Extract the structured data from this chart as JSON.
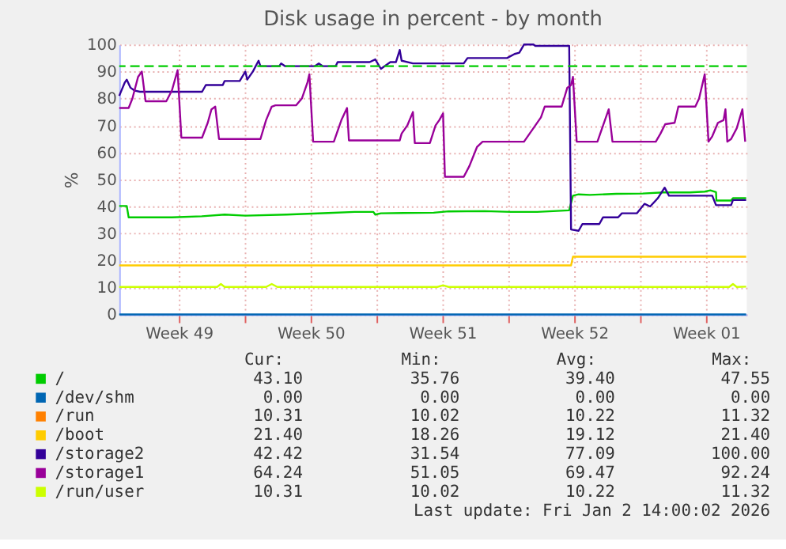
{
  "chart_data": {
    "type": "line",
    "title": "Disk usage in percent - by month",
    "ylabel": "%",
    "xlim": [
      "2025-12-01T08:00",
      "2026-01-03T16:00"
    ],
    "ylim": [
      0,
      100
    ],
    "xticks": [
      {
        "value": "2025-12-04T12:00",
        "label": "Week 49"
      },
      {
        "value": "2025-12-08T00:00",
        "label": null
      },
      {
        "value": "2025-12-11T12:00",
        "label": "Week 50"
      },
      {
        "value": "2025-12-15T00:00",
        "label": null
      },
      {
        "value": "2025-12-18T12:00",
        "label": "Week 51"
      },
      {
        "value": "2025-12-22T00:00",
        "label": null
      },
      {
        "value": "2025-12-25T12:00",
        "label": "Week 52"
      },
      {
        "value": "2025-12-29T00:00",
        "label": null
      },
      {
        "value": "2026-01-01T12:00",
        "label": "Week 01"
      }
    ],
    "yticks": [
      0,
      10,
      20,
      30,
      40,
      50,
      60,
      70,
      80,
      90,
      100
    ],
    "grid": true,
    "legend": "bottom",
    "ref_lines": [
      {
        "axis": "y",
        "value": 92,
        "color": "#00cc00",
        "line_style": "dashed"
      }
    ],
    "series": [
      {
        "name": "/",
        "color": "#00cc00",
        "x": [
          "2025-12-01T08:00",
          "2025-12-01T17:36",
          "2025-12-01T20:00",
          "2025-12-04T03:12",
          "2025-12-05T17:36",
          "2025-12-06T22:24",
          "2025-12-08T00:48",
          "2025-12-10T05:36",
          "2025-12-12T10:24",
          "2025-12-13T20:00",
          "2025-12-14T20:00",
          "2025-12-14T22:24",
          "2025-12-15T05:36",
          "2025-12-18T00:48",
          "2025-12-18T20:00",
          "2025-12-20T17:36",
          "2025-12-22T03:12",
          "2025-12-23T12:48",
          "2025-12-25T05:36",
          "2025-12-25T10:24",
          "2025-12-25T17:36",
          "2025-12-26T08:00",
          "2025-12-27T17:36",
          "2025-12-29T03:12",
          "2025-12-30T05:36",
          "2025-12-31T15:12",
          "2026-01-01T10:24",
          "2026-01-01T17:36",
          "2026-01-02T00:48",
          "2026-01-02T01:17",
          "2026-01-02T20:00",
          "2026-01-02T22:24",
          "2026-01-03T15:12"
        ],
        "values": [
          40.2,
          40.2,
          36,
          36,
          36.4,
          37,
          36.6,
          37,
          37.6,
          38,
          38,
          37,
          37.5,
          37.7,
          38.2,
          38.3,
          38,
          38,
          38.6,
          44,
          44.5,
          44.3,
          44.7,
          44.8,
          45.2,
          45.2,
          45.5,
          46,
          45.3,
          42.2,
          42.2,
          43.1,
          43.1
        ]
      },
      {
        "name": "/dev/shm",
        "color": "#0066b3",
        "x": [
          "2025-12-01T08:00",
          "2026-01-03T15:12"
        ],
        "values": [
          0,
          0
        ]
      },
      {
        "name": "/run",
        "color": "#ff8000"
      },
      {
        "name": "/boot",
        "color": "#ffcc00",
        "x": [
          "2025-12-01T08:00",
          "2025-12-25T08:00",
          "2025-12-25T10:24",
          "2026-01-03T15:12"
        ],
        "values": [
          18.2,
          18.2,
          21.4,
          21.4
        ]
      },
      {
        "name": "/storage2",
        "color": "#330099",
        "x": [
          "2025-12-01T08:00",
          "2025-12-01T15:12",
          "2025-12-01T17:36",
          "2025-12-01T22:24",
          "2025-12-02T03:12",
          "2025-12-02T10:24",
          "2025-12-05T17:36",
          "2025-12-05T22:24",
          "2025-12-06T20:00",
          "2025-12-06T22:24",
          "2025-12-07T17:36",
          "2025-12-08T00:48",
          "2025-12-08T03:12",
          "2025-12-08T10:24",
          "2025-12-08T17:36",
          "2025-12-08T20:00",
          "2025-12-09T20:00",
          "2025-12-09T22:24",
          "2025-12-10T03:12",
          "2025-12-11T17:36",
          "2025-12-11T22:24",
          "2025-12-12T03:12",
          "2025-12-12T20:00",
          "2025-12-12T22:24",
          "2025-12-14T15:12",
          "2025-12-14T22:24",
          "2025-12-15T05:36",
          "2025-12-15T17:36",
          "2025-12-16T00:48",
          "2025-12-16T05:36",
          "2025-12-16T08:00",
          "2025-12-16T22:24",
          "2025-12-19T15:12",
          "2025-12-19T20:00",
          "2025-12-21T22:24",
          "2025-12-22T08:00",
          "2025-12-22T14:00",
          "2025-12-22T20:00",
          "2025-12-23T08:00",
          "2025-12-23T10:24",
          "2025-12-25T05:36",
          "2025-12-25T08:00",
          "2025-12-25T17:36",
          "2025-12-25T22:24",
          "2025-12-26T20:00",
          "2025-12-27T00:48",
          "2025-12-27T20:00",
          "2025-12-28T00:48",
          "2025-12-28T20:00",
          "2025-12-29T05:36",
          "2025-12-29T12:48",
          "2025-12-29T22:24",
          "2025-12-30T07:18",
          "2025-12-30T12:48",
          "2026-01-01T20:00",
          "2026-01-02T00:48",
          "2026-01-02T20:00",
          "2026-01-02T22:24",
          "2026-01-03T15:12"
        ],
        "values": [
          81,
          86,
          87,
          84,
          83,
          82.5,
          82.5,
          85,
          85,
          86.5,
          86.5,
          90,
          87,
          90,
          94,
          92,
          92,
          93,
          92,
          92,
          93,
          92,
          92,
          93.5,
          93.5,
          94.5,
          91,
          93.5,
          93.5,
          98,
          94,
          93,
          93,
          95,
          95,
          96.5,
          97,
          100,
          100,
          99.5,
          99.5,
          31.5,
          31,
          33.5,
          33.5,
          36,
          36,
          37.5,
          37.5,
          41,
          40,
          43,
          47,
          44,
          44,
          40.5,
          40.5,
          42.4,
          42.4
        ]
      },
      {
        "name": "/storage1",
        "color": "#990099",
        "x": [
          "2025-12-01T08:00",
          "2025-12-01T20:00",
          "2025-12-02T00:48",
          "2025-12-02T08:00",
          "2025-12-02T12:48",
          "2025-12-02T17:36",
          "2025-12-03T20:00",
          "2025-12-04T03:12",
          "2025-12-04T10:24",
          "2025-12-04T15:12",
          "2025-12-05T17:36",
          "2025-12-06T00:48",
          "2025-12-06T05:36",
          "2025-12-06T10:24",
          "2025-12-06T15:12",
          "2025-12-08T20:00",
          "2025-12-09T03:12",
          "2025-12-09T10:24",
          "2025-12-09T15:12",
          "2025-12-10T17:36",
          "2025-12-11T00:48",
          "2025-12-11T08:00",
          "2025-12-11T10:24",
          "2025-12-11T15:12",
          "2025-12-12T17:36",
          "2025-12-13T03:12",
          "2025-12-13T10:24",
          "2025-12-13T12:48",
          "2025-12-16T05:36",
          "2025-12-16T08:00",
          "2025-12-16T15:12",
          "2025-12-16T22:24",
          "2025-12-17T00:48",
          "2025-12-17T20:00",
          "2025-12-18T03:12",
          "2025-12-18T08:00",
          "2025-12-18T12:48",
          "2025-12-18T15:12",
          "2025-12-19T15:12",
          "2025-12-19T22:24",
          "2025-12-20T08:00",
          "2025-12-20T15:12",
          "2025-12-22T20:00",
          "2025-12-23T03:12",
          "2025-12-23T10:24",
          "2025-12-23T17:36",
          "2025-12-23T22:24",
          "2025-12-24T20:00",
          "2025-12-25T03:12",
          "2025-12-25T08:00",
          "2025-12-25T10:24",
          "2025-12-25T15:12",
          "2025-12-26T17:36",
          "2025-12-27T00:48",
          "2025-12-27T08:00",
          "2025-12-27T12:48",
          "2025-12-29T20:00",
          "2025-12-30T02:00",
          "2025-12-30T08:00",
          "2025-12-30T20:00",
          "2025-12-31T00:48",
          "2025-12-31T22:24",
          "2026-01-01T03:12",
          "2026-01-01T10:24",
          "2026-01-01T15:12",
          "2026-01-01T20:00",
          "2026-01-02T03:12",
          "2026-01-02T10:24",
          "2026-01-02T12:48",
          "2026-01-02T15:12",
          "2026-01-02T20:00",
          "2026-01-03T03:12",
          "2026-01-03T10:24",
          "2026-01-03T14:00"
        ],
        "values": [
          76.5,
          76.5,
          80,
          88,
          90,
          79,
          79,
          83,
          90.5,
          65.5,
          65.5,
          71,
          76,
          77,
          65,
          65,
          72,
          77,
          77.5,
          77.5,
          80,
          86,
          89,
          64,
          64,
          72,
          76.5,
          64.5,
          64.5,
          67,
          70,
          75,
          63.5,
          63.5,
          70,
          72,
          74.5,
          51,
          51,
          55,
          62,
          64,
          64,
          67,
          70,
          73,
          77,
          77,
          84,
          85,
          88,
          64,
          64,
          70,
          76,
          64,
          64,
          67,
          70.5,
          71,
          77,
          77,
          80,
          89,
          64,
          66,
          71,
          72,
          76,
          64,
          65,
          69,
          76,
          64
        ]
      },
      {
        "name": "/run/user",
        "color": "#ccff00",
        "x": [
          "2025-12-01T08:00",
          "2025-12-06T12:48",
          "2025-12-06T17:36",
          "2025-12-06T22:24",
          "2025-12-09T03:12",
          "2025-12-09T10:24",
          "2025-12-09T17:36",
          "2025-12-18T05:36",
          "2025-12-18T12:48",
          "2025-12-18T20:00",
          "2026-01-02T17:36",
          "2026-01-02T22:24",
          "2026-01-03T03:12",
          "2026-01-03T15:12"
        ],
        "values": [
          10.2,
          10.2,
          11.3,
          10.2,
          10.2,
          11.3,
          10.2,
          10.2,
          10.8,
          10.2,
          10.2,
          11.3,
          10.2,
          10.3
        ]
      }
    ],
    "annotations": [
      "Cur:",
      "Min:",
      "Avg:",
      "Max:",
      "43.10",
      "35.76",
      "39.40",
      "47.55",
      "0.00",
      "0.00",
      "0.00",
      "0.00",
      "10.31",
      "10.02",
      "10.22",
      "11.32",
      "21.40",
      "18.26",
      "19.12",
      "21.40",
      "42.42",
      "31.54",
      "77.09",
      "100.00",
      "64.24",
      "51.05",
      "69.47",
      "92.24",
      "10.31",
      "10.02",
      "10.22",
      "11.32",
      "Last update: Fri Jan  2 14:00:02 2026"
    ]
  }
}
